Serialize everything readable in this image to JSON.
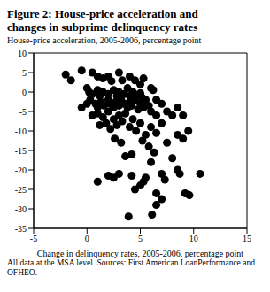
{
  "chart_data": {
    "type": "scatter",
    "title": "Figure 2: House-price acceleration and changes in subprime delinquency rates",
    "y_label": "House-price acceleration, 2005-2006, percentage point",
    "x_label": "Change in delinquency rates, 2005-2006, percentage point",
    "note": "All data at the MSA level. Sources: First American LoanPerformance and OFHEO.",
    "color": "#000000",
    "marker": "circle",
    "grid": false,
    "xlim": [
      -5,
      15
    ],
    "xticks": [
      -5,
      0,
      5,
      10,
      15
    ],
    "ylim": [
      -35,
      10
    ],
    "yticks": [
      -35,
      -30,
      -25,
      -20,
      -15,
      -10,
      -5,
      0,
      5,
      10
    ],
    "x": [
      -2,
      -1.5,
      -0.5,
      0.5,
      1,
      1.5,
      2,
      2.3,
      3,
      3.3,
      4,
      4.5,
      5.3,
      5,
      6,
      6.2,
      0,
      0.2,
      0.5,
      1,
      1.2,
      1.5,
      2,
      2.5,
      2.8,
      3,
      3.5,
      3.8,
      4,
      4.3,
      4.6,
      5,
      5.2,
      5.5,
      6.5,
      7,
      -0.5,
      0,
      0.3,
      0.8,
      1,
      1.3,
      1.6,
      2,
      2.2,
      2.5,
      2.7,
      3,
      3.2,
      3.5,
      3.8,
      4,
      4.2,
      4.5,
      4.8,
      5,
      5.3,
      5.8,
      6,
      6.5,
      7.5,
      8,
      8.5,
      9,
      0.5,
      1,
      1.5,
      2,
      2.5,
      2.8,
      3,
      3.3,
      3.6,
      4,
      4.3,
      4.6,
      5,
      5.5,
      6,
      6.5,
      7,
      7.5,
      8.5,
      9,
      9.5,
      5.2,
      5.8,
      6.3,
      4.2,
      3.2,
      2.6,
      2.2,
      1.8,
      1.2,
      1,
      2,
      2.5,
      3,
      3.6,
      4.2,
      4.5,
      5,
      5.5,
      6,
      6.5,
      7,
      7.3,
      8,
      8.5,
      8.7,
      9.2,
      9.6,
      10.6,
      3.9,
      6.1,
      6.5,
      7,
      5.3
    ],
    "y": [
      4.5,
      3,
      5.5,
      5,
      4,
      3.5,
      4,
      2.8,
      5,
      3,
      4,
      3,
      3.5,
      2,
      1,
      0.5,
      1,
      0,
      -0.5,
      0.5,
      -1,
      0,
      -0.5,
      0.5,
      -1,
      0,
      -0.5,
      1,
      -1,
      0,
      -0.8,
      -0.3,
      -1.5,
      -2,
      -2,
      -3,
      -4,
      -3,
      -2,
      -3,
      -4,
      -2.5,
      -3.5,
      -2,
      -3,
      -4,
      -2.5,
      -3.5,
      -2,
      -3,
      -4,
      -2.5,
      -3.5,
      -2,
      -4.5,
      -3,
      -4,
      -3.5,
      -5,
      -6,
      -5,
      -6,
      -4,
      -6,
      -6,
      -5.5,
      -6.5,
      -5,
      -7,
      -8.5,
      -6,
      -7.5,
      -5.5,
      -9,
      -7,
      -10,
      -8,
      -11,
      -9,
      -10.5,
      -8,
      -13,
      -11,
      -12,
      -10,
      -12.5,
      -14,
      -15.5,
      -16,
      -13,
      -12,
      -9.5,
      -8,
      -8.5,
      -23,
      -21.5,
      -22,
      -21,
      -16.5,
      -21.5,
      -25,
      -24,
      -22,
      -18,
      -26,
      -21,
      -22.5,
      -17,
      -20,
      -21,
      -26,
      -26.5,
      -21,
      -32,
      -31.5,
      -29,
      -27.5,
      -23
    ]
  }
}
